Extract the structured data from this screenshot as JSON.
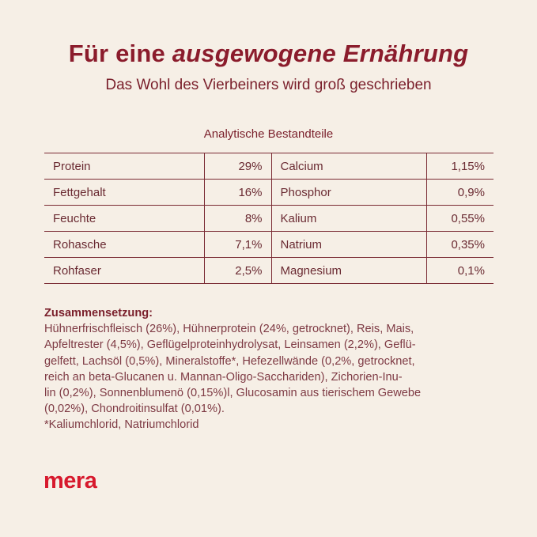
{
  "header": {
    "title_plain": "Für eine",
    "title_italic": "ausgewogene Ernährung",
    "subtitle": "Das Wohl des Vierbeiners wird groß geschrieben"
  },
  "table": {
    "caption": "Analytische Bestandteile",
    "rows": [
      {
        "left_name": "Protein",
        "left_value": "29%",
        "right_name": "Calcium",
        "right_value": "1,15%"
      },
      {
        "left_name": "Fettgehalt",
        "left_value": "16%",
        "right_name": "Phosphor",
        "right_value": "0,9%"
      },
      {
        "left_name": "Feuchte",
        "left_value": "8%",
        "right_name": "Kalium",
        "right_value": "0,55%"
      },
      {
        "left_name": "Rohasche",
        "left_value": "7,1%",
        "right_name": "Natrium",
        "right_value": "0,35%"
      },
      {
        "left_name": "Rohfaser",
        "left_value": "2,5%",
        "right_name": "Magnesium",
        "right_value": "0,1%"
      }
    ]
  },
  "composition": {
    "heading": "Zusammensetzung:",
    "lines": [
      "Hühnerfrischfleisch (26%), Hühnerprotein (24%, getrocknet), Reis, Mais,",
      "Apfeltrester (4,5%), Geflügelproteinhydrolysat, Leinsamen (2,2%), Geflü-",
      "gelfett, Lachsöl (0,5%), Mineralstoffe*, Hefezellwände (0,2%, getrocknet,",
      "reich an beta-Glucanen u. Mannan-Oligo-Sacchariden), Zichorien-Inu-",
      "lin (0,2%), Sonnenblumenö (0,15%)l, Glucosamin aus tierischem Gewebe",
      "(0,02%), Chondroitinsulfat (0,01%).",
      "*Kaliumchlorid, Natriumchlorid"
    ]
  },
  "brand": {
    "logo_text": "mera",
    "color": "#d7192d"
  }
}
